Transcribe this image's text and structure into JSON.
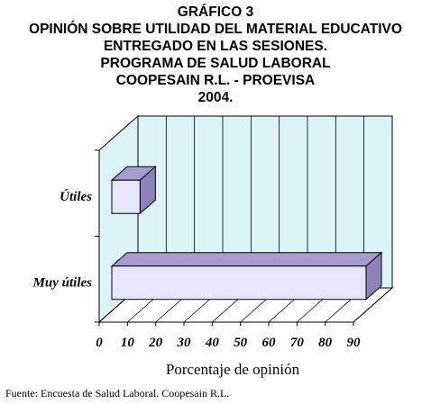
{
  "chart_data": {
    "type": "bar",
    "orientation": "horizontal",
    "style": "3d",
    "title_lines": [
      "GRÁFICO 3",
      "OPINIÓN SOBRE UTILIDAD DEL MATERIAL EDUCATIVO",
      "ENTREGADO EN LAS SESIONES.",
      "PROGRAMA DE SALUD LABORAL",
      "COOPESAIN R.L. - PROEVISA",
      "2004."
    ],
    "categories": [
      "Útiles",
      "Muy útiles"
    ],
    "values": [
      10,
      90
    ],
    "xlabel": "Porcentaje de opinión",
    "ylabel": "",
    "xlim": [
      0,
      90
    ],
    "xticks": [
      "0",
      "10",
      "20",
      "30",
      "40",
      "50",
      "60",
      "70",
      "80",
      "90"
    ],
    "grid": true,
    "colors": {
      "wall": "#ddf3fa",
      "floor": "#ffffff",
      "grid": "#000000",
      "bar_front": "#e6e6fa",
      "bar_top": "#a79ccf",
      "bar_side": "#8e82b8",
      "bar_edge": "#000000"
    }
  },
  "source": "Fuente: Encuesta de  Salud Laboral. Coopesain R.L."
}
